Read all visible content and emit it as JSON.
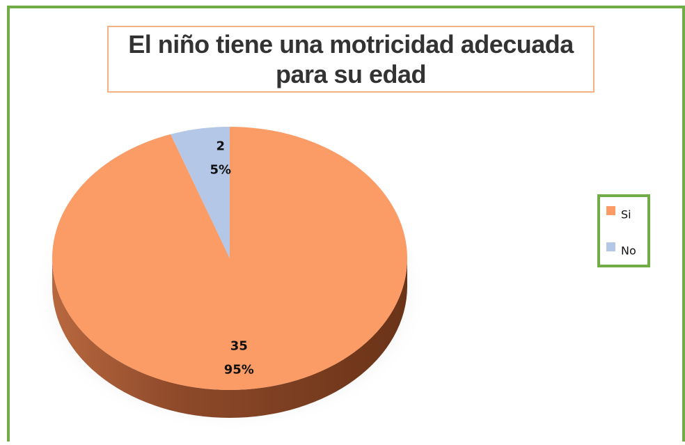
{
  "chart_data": {
    "type": "pie",
    "title": "El niño tiene una motricidad adecuada para su edad",
    "categories": [
      "Si",
      "No"
    ],
    "values": [
      35,
      2
    ],
    "percent_labels": [
      "95%",
      "5%"
    ],
    "colors": [
      "#fb9b66",
      "#b4c7e7"
    ],
    "legend": "right"
  }
}
